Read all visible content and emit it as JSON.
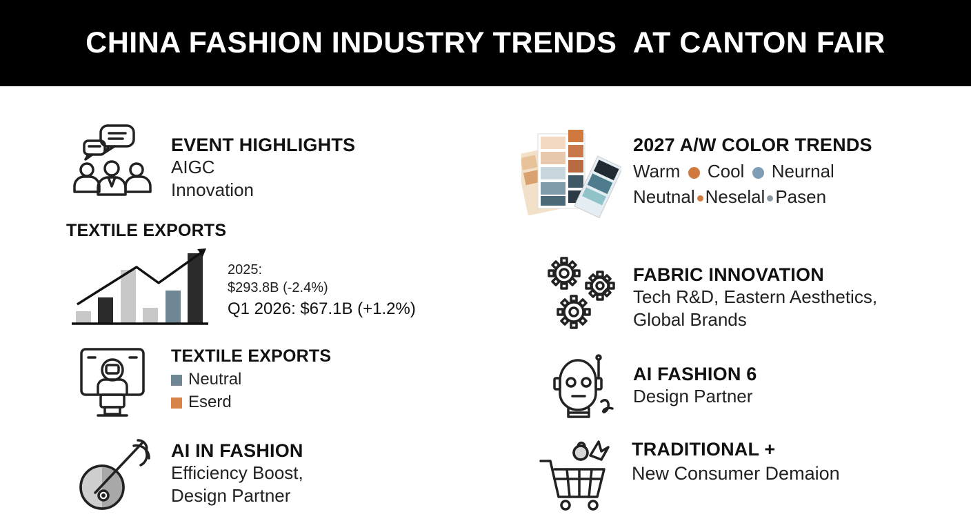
{
  "header": {
    "title": "CHINA FASHION INDUSTRY TRENDS  AT CANTON FAIR"
  },
  "event": {
    "title": "EVENT HIGHLIGHTS",
    "line1": "AIGC",
    "line2": "Innovation",
    "icon": "people-chat-icon"
  },
  "exports": {
    "title": "TEXTILE EXPORTS",
    "stat1_label": "2025:",
    "stat1_value": "$293.8B (-2.4%)",
    "stat2": "Q1 2026: $67.1B  (+1.2%)",
    "icon": "bar-chart-trend-icon"
  },
  "exports2": {
    "title": "TEXTILE EXPORTS",
    "legend": [
      {
        "label": "Neutral",
        "color": "#6f8794"
      },
      {
        "label": "Eserd",
        "color": "#d9824a"
      }
    ],
    "icon": "robot-monitor-icon"
  },
  "ai_fashion": {
    "title": "AI IN FASHION",
    "line1": "Efficiency Boost,",
    "line2": "Design Partner",
    "icon": "needle-thread-icon"
  },
  "color_trends": {
    "title": "2027 A/W COLOR TRENDS",
    "row1": [
      {
        "label": "Warm",
        "dot": "#d07a40"
      },
      {
        "label": "Cool",
        "dot": "#7f9db5"
      },
      {
        "label": "Neurnal"
      }
    ],
    "row2": [
      {
        "label": "Neutnal",
        "dot": "#d07a40"
      },
      {
        "label": "Neselal",
        "dot": "#8d9aa6"
      },
      {
        "label": "Pasen"
      }
    ],
    "icon": "color-swatch-icon"
  },
  "fabric": {
    "title": "FABRIC INNOVATION",
    "line1": "Tech R&D, Eastern Aesthetics,",
    "line2": "Global Brands",
    "icon": "gears-icon"
  },
  "ai_fashion6": {
    "title": "AI FASHION 6",
    "line1": "Design Partner",
    "icon": "robot-head-icon"
  },
  "traditional": {
    "title": "TRADITIONAL +",
    "line1": "New Consumer Demaion",
    "icon": "shopping-cart-icon"
  }
}
